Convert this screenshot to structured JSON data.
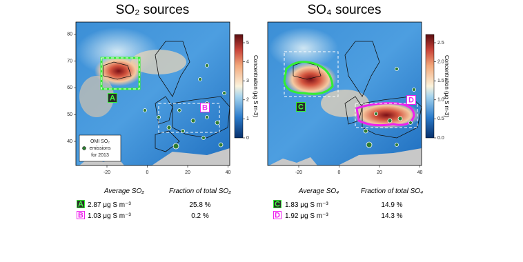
{
  "panels": [
    {
      "title": "SO₂ sources",
      "x_ticks": [
        -20,
        0,
        20,
        40
      ],
      "y_ticks": [
        40,
        50,
        60,
        70,
        80
      ],
      "colorbar": {
        "label": "Concentration (μg S m-3)",
        "ticks": [
          "0",
          "1",
          "2",
          "3",
          "4",
          "5"
        ]
      },
      "regions": [
        "A",
        "B"
      ],
      "legend": [
        "OMI SO₂",
        "emissions",
        "for 2013"
      ],
      "table": {
        "headers": [
          "Average SO₂",
          "Fraction of total SO₂"
        ],
        "rows": [
          [
            "A",
            "2.87 μg S m⁻³",
            "25.8 %"
          ],
          [
            "B",
            "1.03 μg S m⁻³",
            "0.2 %"
          ]
        ]
      }
    },
    {
      "title": "SO₄ sources",
      "x_ticks": [
        -20,
        0,
        20,
        40
      ],
      "colorbar": {
        "label": "Concentration (μg S m-3)",
        "ticks": [
          "0.0",
          "0.5",
          "1.0",
          "1.5",
          "2.0",
          "2.5"
        ]
      },
      "regions": [
        "C",
        "D"
      ],
      "table": {
        "headers": [
          "Average SO₄",
          "Fraction of total SO₄"
        ],
        "rows": [
          [
            "C",
            "1.83 μg S m⁻³",
            "14.9 %"
          ],
          [
            "D",
            "1.92 μg S m⁻³",
            "14.3 %"
          ]
        ]
      }
    }
  ]
}
